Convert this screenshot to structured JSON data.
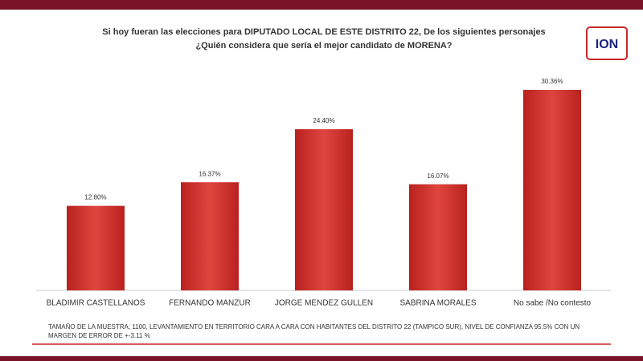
{
  "chart_data": {
    "type": "bar",
    "title": [
      "Si hoy fueran las elecciones para DIPUTADO LOCAL DE ESTE DISTRITO 22, De los siguientes personajes",
      "¿Quién considera que sería el mejor candidato  de MORENA?"
    ],
    "categories": [
      "BLADIMIR CASTELLANOS",
      "FERNANDO MANZUR",
      "JORGE MENDEZ GULLEN",
      "SABRINA MORALES",
      "No sabe /No contesto"
    ],
    "values": [
      12.8,
      16.37,
      24.4,
      16.07,
      30.36
    ],
    "value_labels": [
      "12.80%",
      "16.37%",
      "24.40%",
      "16.07%",
      "30.36%"
    ],
    "color": "#d33a35",
    "footnote": [
      "TAMAÑO DE LA MUESTRA; 1100,  LEVANTAMIENTO EN TERRITORIO CARA A CARA CON HABITANTES DEL DISTRITO 22  (TAMPICO SUR), NIVEL DE CONFIANZA 95.5% CON UN",
      "MARGEN DE ERROR DE +-3.11 %"
    ],
    "logo": "ION"
  }
}
